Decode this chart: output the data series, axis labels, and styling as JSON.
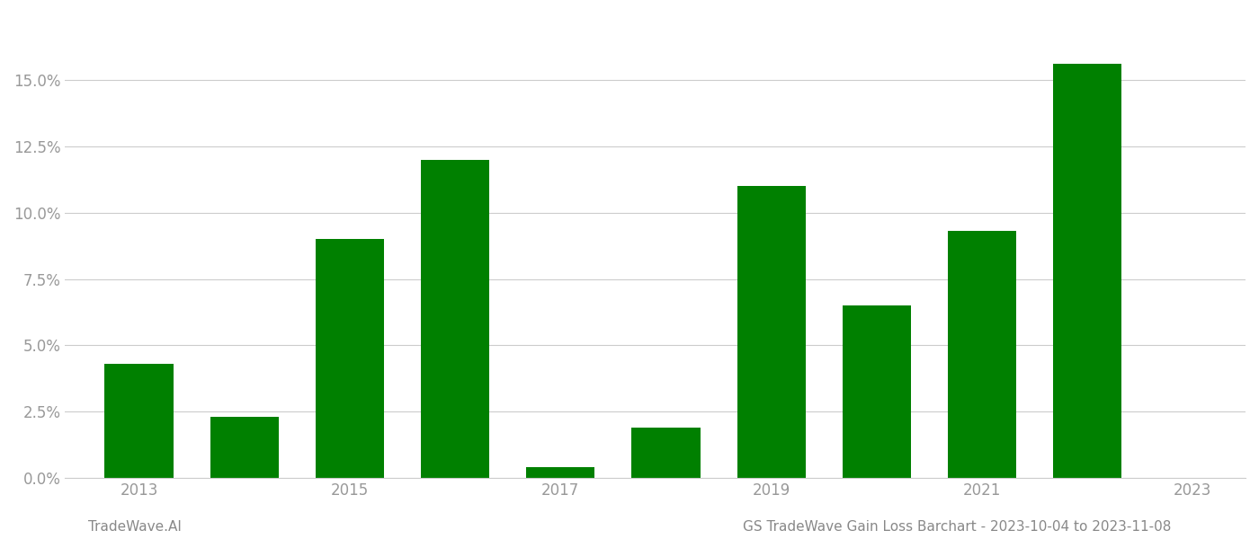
{
  "years": [
    2013,
    2014,
    2015,
    2016,
    2017,
    2018,
    2019,
    2020,
    2021,
    2022
  ],
  "values": [
    0.043,
    0.023,
    0.09,
    0.12,
    0.004,
    0.019,
    0.11,
    0.065,
    0.093,
    0.156
  ],
  "bar_color": "#008000",
  "background_color": "#ffffff",
  "grid_color": "#cccccc",
  "tick_color": "#999999",
  "ylim": [
    0,
    0.175
  ],
  "yticks": [
    0.0,
    0.025,
    0.05,
    0.075,
    0.1,
    0.125,
    0.15
  ],
  "xlabel": "",
  "ylabel": "",
  "footer_left": "TradeWave.AI",
  "footer_right": "GS TradeWave Gain Loss Barchart - 2023-10-04 to 2023-11-08",
  "footer_color": "#888888",
  "footer_fontsize": 11,
  "bar_width": 0.65
}
